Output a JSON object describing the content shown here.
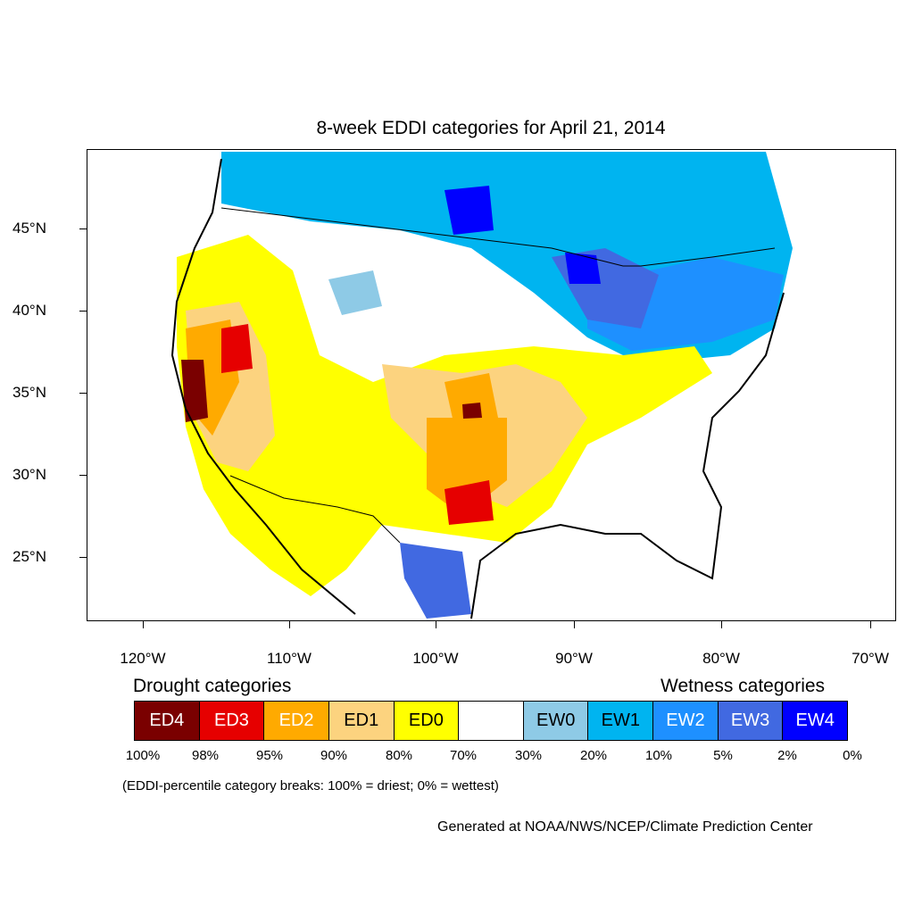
{
  "title": "8-week EDDI categories for April 21, 2014",
  "lat_labels": [
    "45°N",
    "40°N",
    "35°N",
    "30°N",
    "25°N"
  ],
  "lon_labels": [
    "120°W",
    "110°W",
    "100°W",
    "90°W",
    "80°W",
    "70°W"
  ],
  "legend": {
    "drought_heading": "Drought categories",
    "wetness_heading": "Wetness categories",
    "categories": [
      {
        "label": "ED4",
        "color": "#7a0000",
        "text_color": "#ffffff"
      },
      {
        "label": "ED3",
        "color": "#e60000",
        "text_color": "#ffffff"
      },
      {
        "label": "ED2",
        "color": "#ffaa00",
        "text_color": "#ffffff"
      },
      {
        "label": "ED1",
        "color": "#fcd37f",
        "text_color": "#000000"
      },
      {
        "label": "ED0",
        "color": "#ffff00",
        "text_color": "#000000"
      },
      {
        "label": "",
        "color": "#ffffff",
        "text_color": "#000000"
      },
      {
        "label": "EW0",
        "color": "#8ecae6",
        "text_color": "#000000"
      },
      {
        "label": "EW1",
        "color": "#00b4f0",
        "text_color": "#000000"
      },
      {
        "label": "EW2",
        "color": "#1e90ff",
        "text_color": "#ffffff"
      },
      {
        "label": "EW3",
        "color": "#4169e1",
        "text_color": "#ffffff"
      },
      {
        "label": "EW4",
        "color": "#0000ff",
        "text_color": "#ffffff"
      }
    ],
    "breaks": [
      "100%",
      "98%",
      "95%",
      "90%",
      "80%",
      "70%",
      "30%",
      "20%",
      "10%",
      "5%",
      "2%",
      "0%"
    ],
    "note": "(EDDI-percentile category breaks: 100% = driest; 0% = wettest)"
  },
  "credit": "Generated at NOAA/NWS/NCEP/Climate Prediction Center"
}
